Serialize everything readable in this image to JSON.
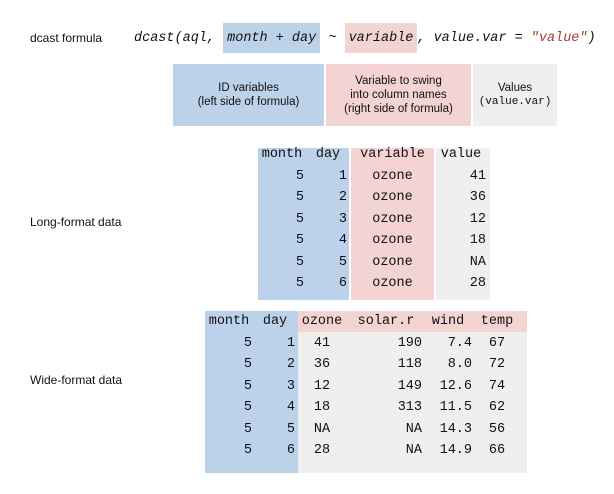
{
  "formula": {
    "label": "dcast formula",
    "prefix": "dcast(aql, ",
    "id_part": "month + day",
    "tilde": " ~ ",
    "var_part": "variable",
    "mid": ", value.var = ",
    "value_str": "\"value\"",
    "suffix": ")"
  },
  "legend": {
    "id_line1": "ID variables",
    "id_line2": "(left side of formula)",
    "var_line1": "Variable to swing",
    "var_line2": "into column names",
    "var_line3": "(right side of formula)",
    "val_line1": "Values",
    "val_line2": "(value.var)"
  },
  "long": {
    "label": "Long-format data",
    "headers": [
      "month",
      "day",
      "variable",
      "value"
    ],
    "rows": [
      [
        "5",
        "1",
        "ozone",
        "41"
      ],
      [
        "5",
        "2",
        "ozone",
        "36"
      ],
      [
        "5",
        "3",
        "ozone",
        "12"
      ],
      [
        "5",
        "4",
        "ozone",
        "18"
      ],
      [
        "5",
        "5",
        "ozone",
        "NA"
      ],
      [
        "5",
        "6",
        "ozone",
        "28"
      ]
    ]
  },
  "wide": {
    "label": "Wide-format data",
    "headers": [
      "month",
      "day",
      "ozone",
      "solar.r",
      "wind",
      "temp"
    ],
    "rows": [
      [
        "5",
        "1",
        "41",
        "190",
        "7.4",
        "67"
      ],
      [
        "5",
        "2",
        "36",
        "118",
        "8.0",
        "72"
      ],
      [
        "5",
        "3",
        "12",
        "149",
        "12.6",
        "74"
      ],
      [
        "5",
        "4",
        "18",
        "313",
        "11.5",
        "62"
      ],
      [
        "5",
        "5",
        "NA",
        "NA",
        "14.3",
        "56"
      ],
      [
        "5",
        "6",
        "28",
        "NA",
        "14.9",
        "66"
      ]
    ]
  },
  "colors": {
    "id_blue": "#bcd1ea",
    "var_pink": "#f4d3d3",
    "value_gray": "#efefef",
    "string_red": "#b03a32"
  }
}
